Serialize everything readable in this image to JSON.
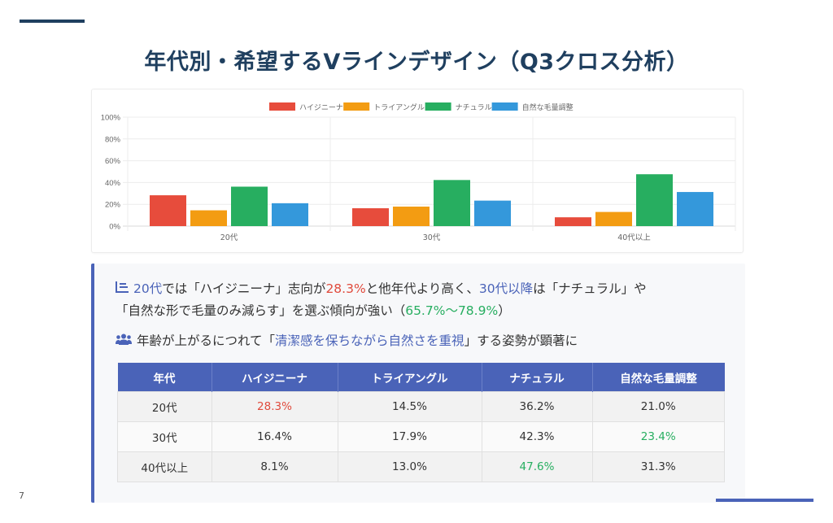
{
  "page": {
    "title": "年代別・希望するVラインデザイン（Q3クロス分析）",
    "page_number": "7"
  },
  "colors": {
    "accent": "#4a63b8",
    "title": "#1f3f5f",
    "red": "#e04a3c",
    "green": "#27ae60"
  },
  "chart_data": {
    "type": "bar",
    "title": "",
    "xlabel": "",
    "ylabel": "",
    "categories": [
      "20代",
      "30代",
      "40代以上"
    ],
    "series": [
      {
        "name": "ハイジニーナ",
        "color": "#e74c3c",
        "values": [
          28.3,
          16.4,
          8.1
        ]
      },
      {
        "name": "トライアングル",
        "color": "#f39c12",
        "values": [
          14.5,
          17.9,
          13.0
        ]
      },
      {
        "name": "ナチュラル",
        "color": "#27ae60",
        "values": [
          36.2,
          42.3,
          47.6
        ]
      },
      {
        "name": "自然な毛量調整",
        "color": "#3498db",
        "values": [
          21.0,
          23.4,
          31.3
        ]
      }
    ],
    "ylim": [
      0,
      100
    ],
    "yticks": [
      "0%",
      "20%",
      "40%",
      "60%",
      "80%",
      "100%"
    ],
    "ytick_values": [
      0,
      20,
      40,
      60,
      80,
      100
    ],
    "grid": true,
    "legend_position": "top"
  },
  "insights": {
    "line1": {
      "a": "20代",
      "b": "では「ハイジニーナ」志向が",
      "c": "28.3%",
      "d": "と他年代より高く、",
      "e": "30代以降",
      "f": "は「ナチュラル」や"
    },
    "line2": {
      "a": "「自然な形で毛量のみ減らす」を選ぶ傾向が強い（",
      "b": "65.7%〜78.9%",
      "c": "）"
    },
    "line3": {
      "a": "年齢が上がるにつれて「",
      "b": "清潔感を保ちながら自然さを重視",
      "c": "」する姿勢が顕著に"
    },
    "icons": {
      "line1": "list-icon",
      "line3": "users-icon"
    }
  },
  "table": {
    "headers": [
      "年代",
      "ハイジニーナ",
      "トライアングル",
      "ナチュラル",
      "自然な毛量調整"
    ],
    "rows": [
      [
        "20代",
        "28.3%",
        "14.5%",
        "36.2%",
        "21.0%"
      ],
      [
        "30代",
        "16.4%",
        "17.9%",
        "42.3%",
        "23.4%"
      ],
      [
        "40代以上",
        "8.1%",
        "13.0%",
        "47.6%",
        "31.3%"
      ]
    ]
  }
}
